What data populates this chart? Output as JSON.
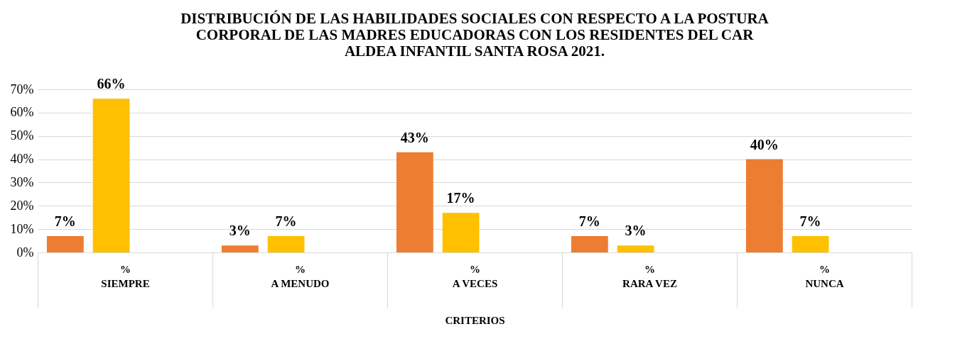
{
  "chart_data": {
    "type": "bar",
    "title": [
      "DISTRIBUCIÓN DE LAS HABILIDADES SOCIALES CON RESPECTO A LA POSTURA",
      "CORPORAL DE LAS MADRES EDUCADORAS CON LOS RESIDENTES DEL CAR",
      "ALDEA INFANTIL SANTA ROSA 2021."
    ],
    "xlabel": "CRITERIOS",
    "categories": [
      "SIEMPRE",
      "A MENUDO",
      "A VECES",
      "RARA VEZ",
      "NUNCA"
    ],
    "series": [
      {
        "color": "#ed7d31",
        "values": [
          7,
          3,
          43,
          7,
          40
        ],
        "value_labels": [
          "7%",
          "3%",
          "43%",
          "7%",
          "40%"
        ]
      },
      {
        "color": "#ffc000",
        "values": [
          66,
          7,
          17,
          3,
          7
        ],
        "value_labels": [
          "66%",
          "7%",
          "17%",
          "3%",
          "7%"
        ]
      }
    ],
    "ylim": [
      0,
      70
    ],
    "yticks": [
      {
        "value": 0,
        "label": "0%"
      },
      {
        "value": 10,
        "label": "10%"
      },
      {
        "value": 20,
        "label": "20%"
      },
      {
        "value": 30,
        "label": "30%"
      },
      {
        "value": 40,
        "label": "40%"
      },
      {
        "value": 50,
        "label": "50%"
      },
      {
        "value": 60,
        "label": "60%"
      },
      {
        "value": 70,
        "label": "70%"
      }
    ],
    "annotations": [
      "%",
      "%",
      "%",
      "%",
      "%"
    ],
    "grid": "y"
  }
}
